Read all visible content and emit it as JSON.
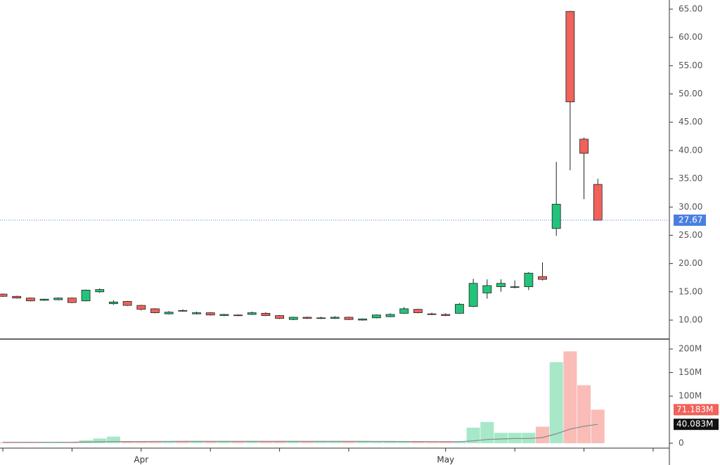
{
  "chart_data": [
    {
      "type": "candlestick",
      "categories": [
        null,
        null,
        null,
        null,
        null,
        null,
        null,
        null,
        null,
        null,
        "Apr",
        null,
        null,
        null,
        null,
        null,
        null,
        null,
        null,
        null,
        null,
        null,
        null,
        null,
        null,
        null,
        null,
        null,
        null,
        null,
        null,
        null,
        "May",
        null,
        null,
        null,
        null,
        null,
        null,
        null,
        null,
        null,
        null,
        null
      ],
      "open": [
        14.6,
        14.2,
        13.9,
        13.5,
        13.6,
        13.9,
        13.4,
        15.0,
        12.9,
        13.3,
        12.6,
        12.0,
        11.1,
        11.7,
        11.1,
        11.3,
        10.8,
        10.9,
        11.0,
        11.2,
        10.8,
        10.1,
        10.5,
        10.3,
        10.3,
        10.5,
        10.0,
        10.4,
        10.6,
        11.2,
        11.9,
        11.1,
        11.0,
        11.2,
        12.4,
        14.8,
        15.9,
        15.8,
        15.9,
        17.7,
        26.2,
        64.6,
        42.0,
        34.0
      ],
      "high": [
        14.7,
        14.3,
        14.0,
        13.8,
        14.0,
        14.0,
        15.4,
        15.6,
        13.5,
        13.4,
        12.7,
        12.1,
        11.6,
        11.9,
        11.5,
        11.4,
        11.1,
        11.0,
        11.5,
        11.4,
        10.9,
        10.6,
        10.6,
        10.6,
        10.7,
        10.6,
        10.3,
        11.0,
        11.2,
        12.3,
        12.0,
        11.3,
        11.2,
        13.0,
        17.3,
        17.2,
        17.2,
        17.0,
        18.5,
        20.2,
        38.0,
        64.7,
        42.3,
        35.0
      ],
      "low": [
        14.1,
        13.8,
        13.3,
        13.4,
        13.5,
        13.0,
        13.3,
        14.8,
        12.7,
        12.5,
        11.7,
        11.2,
        11.0,
        11.5,
        11.0,
        10.8,
        10.7,
        10.7,
        10.9,
        10.7,
        10.2,
        10.0,
        10.2,
        10.2,
        10.2,
        10.0,
        9.9,
        10.3,
        10.5,
        11.1,
        11.2,
        10.9,
        10.7,
        11.1,
        12.3,
        13.8,
        15.0,
        15.6,
        15.3,
        17.0,
        24.9,
        36.5,
        31.4,
        27.6
      ],
      "close": [
        14.2,
        13.9,
        13.4,
        13.7,
        13.9,
        13.1,
        15.3,
        15.4,
        13.2,
        12.6,
        11.9,
        11.3,
        11.4,
        11.6,
        11.3,
        10.9,
        11.0,
        10.8,
        11.3,
        10.8,
        10.3,
        10.5,
        10.3,
        10.4,
        10.5,
        10.1,
        10.2,
        10.9,
        11.0,
        12.0,
        11.3,
        11.0,
        10.8,
        12.8,
        16.5,
        16.1,
        16.5,
        15.9,
        18.3,
        17.2,
        30.5,
        48.6,
        39.5,
        27.67
      ],
      "up_color": "#22c47a",
      "down_color": "#f0625a",
      "ylim": [
        6.64,
        66.62
      ],
      "yticks": [
        {
          "value": 10,
          "label": "10.00"
        },
        {
          "value": 15,
          "label": "15.00"
        },
        {
          "value": 20,
          "label": "20.00"
        },
        {
          "value": 25,
          "label": "25.00"
        },
        {
          "value": 30,
          "label": "30.00"
        },
        {
          "value": 35,
          "label": "35.00"
        },
        {
          "value": 40,
          "label": "40.00"
        },
        {
          "value": 45,
          "label": "45.00"
        },
        {
          "value": 50,
          "label": "50.00"
        },
        {
          "value": 55,
          "label": "55.00"
        },
        {
          "value": 60,
          "label": "60.00"
        },
        {
          "value": 65,
          "label": "65.00"
        }
      ],
      "last_price": 27.67,
      "last_price_color": "#4a7fe0"
    },
    {
      "type": "bar",
      "values": [
        2,
        2,
        2,
        2,
        2,
        2,
        6,
        10,
        14,
        4,
        4,
        4,
        4,
        4,
        4,
        4,
        4,
        4,
        4,
        4,
        4,
        4,
        4,
        4,
        4,
        4,
        3,
        3,
        3,
        3,
        3,
        3,
        3,
        3,
        33,
        45,
        22,
        22,
        22,
        35,
        172,
        195,
        123,
        71.183
      ],
      "up_color": "#a6e8c8",
      "down_color": "#f9bcb7",
      "ma": [
        2,
        2,
        2,
        2,
        2,
        2,
        2.5,
        3,
        3.5,
        3.6,
        3.7,
        3.8,
        3.9,
        4,
        4,
        4,
        4,
        4,
        4,
        4,
        4,
        4,
        4,
        4,
        4,
        4,
        4,
        3.9,
        3.8,
        3.7,
        3.6,
        3.5,
        3.4,
        3.3,
        5,
        8,
        9,
        10,
        10,
        12,
        20,
        30,
        36,
        40.083
      ],
      "ma_color": "#888888",
      "ylim": [
        -10.4,
        218
      ],
      "yticks": [
        {
          "value": 0,
          "label": "0"
        },
        {
          "value": 100,
          "label": "100M"
        },
        {
          "value": 150,
          "label": "150M"
        },
        {
          "value": 200,
          "label": "200M"
        }
      ],
      "last_labels": [
        {
          "value": 71.183,
          "label": "71.183M",
          "color": "#f0625a"
        },
        {
          "value": 40.083,
          "label": "40.083M",
          "color": "#111111"
        }
      ]
    }
  ]
}
